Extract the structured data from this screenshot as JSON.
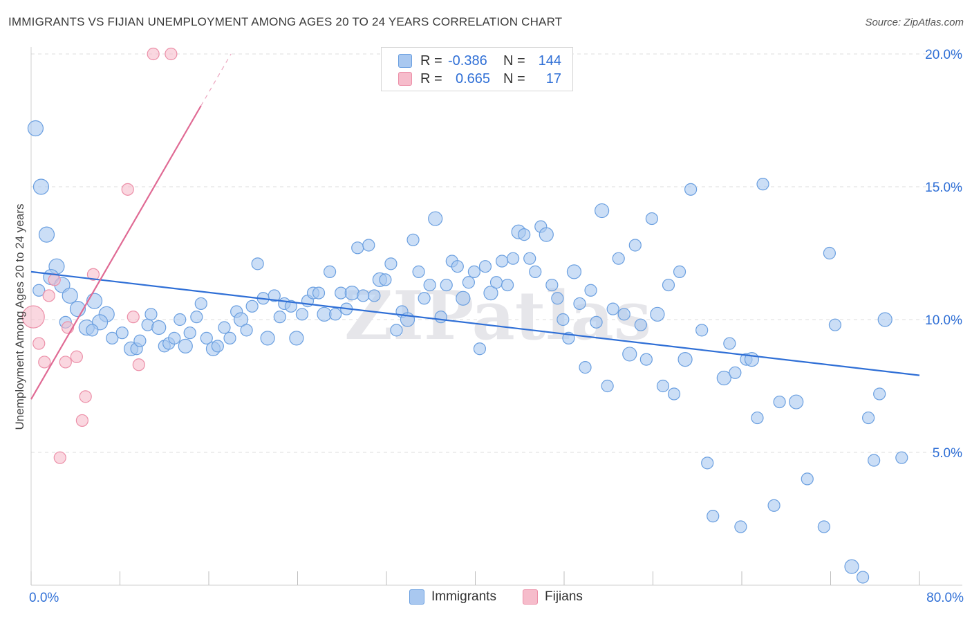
{
  "title": "IMMIGRANTS VS FIJIAN UNEMPLOYMENT AMONG AGES 20 TO 24 YEARS CORRELATION CHART",
  "source": "Source: ZipAtlas.com",
  "watermark": "ZIPatlas",
  "legend": {
    "rows": [
      {
        "r_label": "R =",
        "r_value": "-0.386",
        "n_label": "N =",
        "n_value": "144"
      },
      {
        "r_label": "R =",
        "r_value": "0.665",
        "n_label": "N =",
        "n_value": "17"
      }
    ]
  },
  "bottom_legend": {
    "immigrants": "Immigrants",
    "fijians": "Fijians"
  },
  "colors": {
    "immigrants_fill": "#a9c8f0",
    "immigrants_stroke": "#6a9fe0",
    "immigrants_line": "#2f6fd6",
    "fijians_fill": "#f6bccb",
    "fijians_stroke": "#ec8fa8",
    "fijians_line": "#e06a94",
    "axis_text": "#2f6fd6",
    "grid": "#dcdcdc"
  },
  "chart_data": {
    "type": "scatter",
    "title": "IMMIGRANTS VS FIJIAN UNEMPLOYMENT AMONG AGES 20 TO 24 YEARS CORRELATION CHART",
    "xlabel": "",
    "ylabel": "Unemployment Among Ages 20 to 24 years",
    "xlim": [
      0,
      80
    ],
    "ylim": [
      0,
      20
    ],
    "x_tick_labels": [
      "0.0%",
      "80.0%"
    ],
    "y_ticks": [
      5,
      10,
      15,
      20
    ],
    "y_tick_labels": [
      "5.0%",
      "10.0%",
      "15.0%",
      "20.0%"
    ],
    "grid": true,
    "legend_position": "top-center",
    "series": [
      {
        "name": "Immigrants",
        "r": -0.386,
        "n": 144,
        "trend": {
          "x": [
            0,
            80
          ],
          "y": [
            11.8,
            7.9
          ]
        },
        "points": [
          [
            0.4,
            17.2
          ],
          [
            0.9,
            15.0
          ],
          [
            1.4,
            13.2
          ],
          [
            2.3,
            12.0
          ],
          [
            1.8,
            11.6
          ],
          [
            2.8,
            11.3
          ],
          [
            3.5,
            10.9
          ],
          [
            4.2,
            10.4
          ],
          [
            5.7,
            10.7
          ],
          [
            6.8,
            10.2
          ],
          [
            5.0,
            9.7
          ],
          [
            6.2,
            9.9
          ],
          [
            5.5,
            9.6
          ],
          [
            7.3,
            9.3
          ],
          [
            8.2,
            9.5
          ],
          [
            9.0,
            8.9
          ],
          [
            9.5,
            8.9
          ],
          [
            9.8,
            9.2
          ],
          [
            10.5,
            9.8
          ],
          [
            10.8,
            10.2
          ],
          [
            11.5,
            9.7
          ],
          [
            12.0,
            9.0
          ],
          [
            12.4,
            9.1
          ],
          [
            12.9,
            9.3
          ],
          [
            13.4,
            10.0
          ],
          [
            13.9,
            9.0
          ],
          [
            14.3,
            9.5
          ],
          [
            14.9,
            10.1
          ],
          [
            15.3,
            10.6
          ],
          [
            15.8,
            9.3
          ],
          [
            16.4,
            8.9
          ],
          [
            16.8,
            9.0
          ],
          [
            17.4,
            9.7
          ],
          [
            17.9,
            9.3
          ],
          [
            18.5,
            10.3
          ],
          [
            18.9,
            10.0
          ],
          [
            19.4,
            9.6
          ],
          [
            19.9,
            10.5
          ],
          [
            20.4,
            12.1
          ],
          [
            20.9,
            10.8
          ],
          [
            21.3,
            9.3
          ],
          [
            21.9,
            10.9
          ],
          [
            22.4,
            10.1
          ],
          [
            22.8,
            10.6
          ],
          [
            23.4,
            10.5
          ],
          [
            23.9,
            9.3
          ],
          [
            24.4,
            10.2
          ],
          [
            24.9,
            10.7
          ],
          [
            25.4,
            11.0
          ],
          [
            25.9,
            11.0
          ],
          [
            26.4,
            10.2
          ],
          [
            26.9,
            11.8
          ],
          [
            27.4,
            10.2
          ],
          [
            27.9,
            11.0
          ],
          [
            28.4,
            10.4
          ],
          [
            28.9,
            11.0
          ],
          [
            29.4,
            12.7
          ],
          [
            29.9,
            10.9
          ],
          [
            30.4,
            12.8
          ],
          [
            30.9,
            10.9
          ],
          [
            31.4,
            11.5
          ],
          [
            31.9,
            11.5
          ],
          [
            32.4,
            12.1
          ],
          [
            32.9,
            9.6
          ],
          [
            33.4,
            10.3
          ],
          [
            33.9,
            10.0
          ],
          [
            34.4,
            13.0
          ],
          [
            34.9,
            11.8
          ],
          [
            35.4,
            10.8
          ],
          [
            35.9,
            11.3
          ],
          [
            36.4,
            13.8
          ],
          [
            36.9,
            10.1
          ],
          [
            37.4,
            11.3
          ],
          [
            37.9,
            12.2
          ],
          [
            38.4,
            12.0
          ],
          [
            38.9,
            10.8
          ],
          [
            39.4,
            11.4
          ],
          [
            39.9,
            11.8
          ],
          [
            40.4,
            8.9
          ],
          [
            40.9,
            12.0
          ],
          [
            41.4,
            11.0
          ],
          [
            41.9,
            11.4
          ],
          [
            42.4,
            12.2
          ],
          [
            42.9,
            11.3
          ],
          [
            43.4,
            12.3
          ],
          [
            43.9,
            13.3
          ],
          [
            44.4,
            13.2
          ],
          [
            44.9,
            12.3
          ],
          [
            45.4,
            11.8
          ],
          [
            45.9,
            13.5
          ],
          [
            46.4,
            13.2
          ],
          [
            46.9,
            11.3
          ],
          [
            47.4,
            10.8
          ],
          [
            47.9,
            10.0
          ],
          [
            48.4,
            9.3
          ],
          [
            48.9,
            11.8
          ],
          [
            49.4,
            10.6
          ],
          [
            49.9,
            8.2
          ],
          [
            50.4,
            11.1
          ],
          [
            50.9,
            9.9
          ],
          [
            51.4,
            14.1
          ],
          [
            51.9,
            7.5
          ],
          [
            52.4,
            10.4
          ],
          [
            52.9,
            12.3
          ],
          [
            53.4,
            10.2
          ],
          [
            53.9,
            8.7
          ],
          [
            54.4,
            12.8
          ],
          [
            54.9,
            9.8
          ],
          [
            55.4,
            8.5
          ],
          [
            55.9,
            13.8
          ],
          [
            56.4,
            10.2
          ],
          [
            56.9,
            7.5
          ],
          [
            57.4,
            11.3
          ],
          [
            57.9,
            7.2
          ],
          [
            58.4,
            11.8
          ],
          [
            58.9,
            8.5
          ],
          [
            59.4,
            14.9
          ],
          [
            60.4,
            9.6
          ],
          [
            60.9,
            4.6
          ],
          [
            61.4,
            2.6
          ],
          [
            62.4,
            7.8
          ],
          [
            62.9,
            9.1
          ],
          [
            63.4,
            8.0
          ],
          [
            63.9,
            2.2
          ],
          [
            64.4,
            8.5
          ],
          [
            64.9,
            8.5
          ],
          [
            65.4,
            6.3
          ],
          [
            65.9,
            15.1
          ],
          [
            66.9,
            3.0
          ],
          [
            67.4,
            6.9
          ],
          [
            68.9,
            6.9
          ],
          [
            69.9,
            4.0
          ],
          [
            71.4,
            2.2
          ],
          [
            71.9,
            12.5
          ],
          [
            72.4,
            9.8
          ],
          [
            73.9,
            0.7
          ],
          [
            74.9,
            0.3
          ],
          [
            75.4,
            6.3
          ],
          [
            75.9,
            4.7
          ],
          [
            76.4,
            7.2
          ],
          [
            76.9,
            10.0
          ],
          [
            78.4,
            4.8
          ],
          [
            0.7,
            11.1
          ],
          [
            3.1,
            9.9
          ]
        ]
      },
      {
        "name": "Fijians",
        "r": 0.665,
        "n": 17,
        "trend": {
          "x": [
            0,
            18
          ],
          "y": [
            7.0,
            20.0
          ]
        },
        "points": [
          [
            0.2,
            10.1
          ],
          [
            0.7,
            9.1
          ],
          [
            1.2,
            8.4
          ],
          [
            1.6,
            10.9
          ],
          [
            2.1,
            11.5
          ],
          [
            2.6,
            4.8
          ],
          [
            3.1,
            8.4
          ],
          [
            3.3,
            9.7
          ],
          [
            4.1,
            8.6
          ],
          [
            4.6,
            6.2
          ],
          [
            4.9,
            7.1
          ],
          [
            5.6,
            11.7
          ],
          [
            8.7,
            14.9
          ],
          [
            9.2,
            10.1
          ],
          [
            9.7,
            8.3
          ],
          [
            11.0,
            20.0
          ],
          [
            12.6,
            20.0
          ]
        ]
      }
    ]
  }
}
